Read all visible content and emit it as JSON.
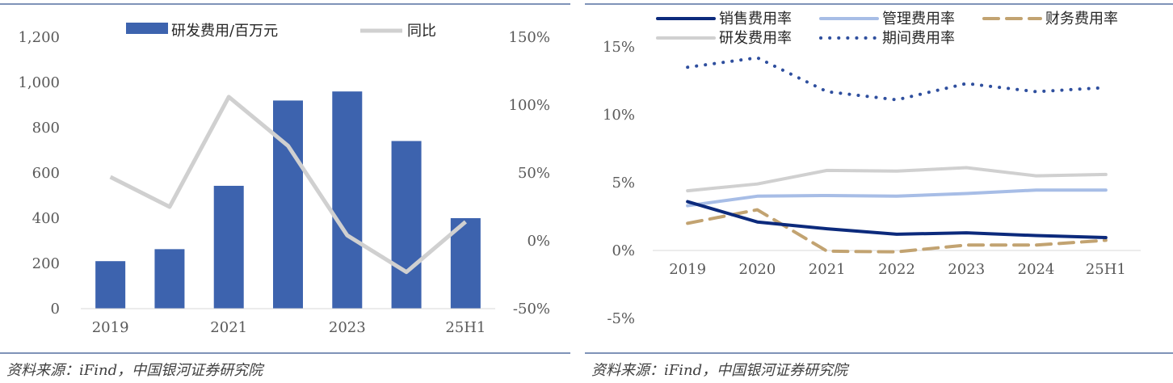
{
  "panels": {
    "left": {
      "source": "资料来源：iFind，中国银河证券研究院"
    },
    "right": {
      "source": "资料来源：iFind，中国银河证券研究院"
    }
  },
  "chart_data": [
    {
      "type": "bar",
      "categories": [
        "2019",
        "2020",
        "2021",
        "2022",
        "2023",
        "2024",
        "25H1"
      ],
      "category_tick_labels": [
        "2019",
        "",
        "2021",
        "",
        "2023",
        "",
        "25H1"
      ],
      "series": [
        {
          "name": "研发费用/百万元",
          "kind": "bar",
          "axis": "left",
          "color": "#3d63ae",
          "values": [
            210,
            263,
            543,
            920,
            960,
            741,
            400
          ]
        },
        {
          "name": "同比",
          "kind": "line",
          "axis": "right",
          "color": "#d0d0d0",
          "values": [
            47,
            25,
            106,
            70,
            4,
            -23,
            14
          ]
        }
      ],
      "y_left": {
        "min": 0,
        "max": 1200,
        "ticks": [
          "0",
          "200",
          "400",
          "600",
          "800",
          "1,000",
          "1,200"
        ]
      },
      "y_right": {
        "min": -50,
        "max": 150,
        "ticks": [
          "-50%",
          "0%",
          "50%",
          "100%",
          "150%"
        ]
      },
      "legend_position": "top",
      "grid": false
    },
    {
      "type": "line",
      "categories": [
        "2019",
        "2020",
        "2021",
        "2022",
        "2023",
        "2024",
        "25H1"
      ],
      "unit": "%",
      "series": [
        {
          "name": "销售费用率",
          "color": "#0c2a7c",
          "style": "solid",
          "values": [
            3.6,
            2.1,
            1.6,
            1.2,
            1.3,
            1.1,
            0.95
          ]
        },
        {
          "name": "管理费用率",
          "color": "#a7bde6",
          "style": "solid",
          "values": [
            3.3,
            4.0,
            4.05,
            4.0,
            4.2,
            4.45,
            4.45
          ]
        },
        {
          "name": "财务费用率",
          "color": "#c2a371",
          "style": "dashed",
          "values": [
            2.0,
            3.0,
            -0.05,
            -0.1,
            0.4,
            0.4,
            0.75
          ]
        },
        {
          "name": "研发费用率",
          "color": "#d0d0d0",
          "style": "solid",
          "values": [
            4.4,
            4.9,
            5.9,
            5.85,
            6.1,
            5.5,
            5.6
          ]
        },
        {
          "name": "期间费用率",
          "color": "#2f4f9e",
          "style": "dotted",
          "values": [
            13.5,
            14.2,
            11.7,
            11.1,
            12.3,
            11.7,
            12.0
          ]
        }
      ],
      "y": {
        "min": -5,
        "max": 15,
        "ticks": [
          "-5%",
          "0%",
          "5%",
          "10%",
          "15%"
        ]
      },
      "legend_position": "top",
      "grid": false
    }
  ]
}
